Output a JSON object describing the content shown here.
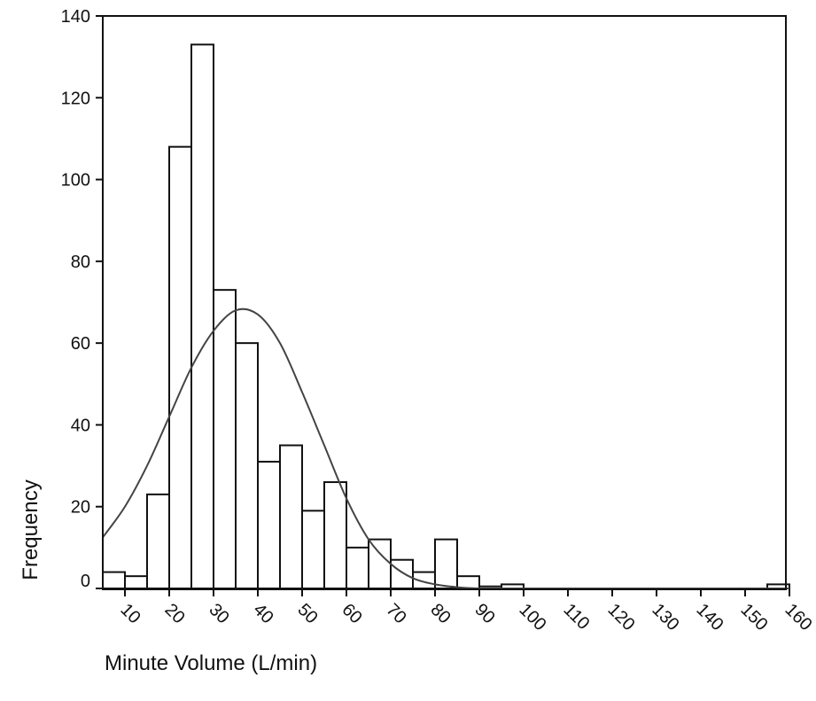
{
  "chart_data": {
    "type": "bar",
    "title": "",
    "xlabel": "Minute Volume (L/min)",
    "ylabel": "Frequency",
    "ylim": [
      0,
      140
    ],
    "yticks": [
      0,
      20,
      40,
      60,
      80,
      100,
      120,
      140
    ],
    "xlim": [
      5,
      161
    ],
    "xticks": [
      10,
      20,
      30,
      40,
      50,
      60,
      70,
      80,
      90,
      100,
      110,
      120,
      130,
      140,
      150,
      160
    ],
    "xtick_labels": [
      "10",
      "20",
      "30",
      "40",
      "50",
      "60",
      "70",
      "80",
      "90",
      "100",
      "110",
      "120",
      "130",
      "140",
      "150",
      "160"
    ],
    "bin_width": 5,
    "bins": [
      {
        "start": 5,
        "end": 10,
        "count": 4
      },
      {
        "start": 10,
        "end": 15,
        "count": 3
      },
      {
        "start": 15,
        "end": 20,
        "count": 23
      },
      {
        "start": 20,
        "end": 25,
        "count": 108
      },
      {
        "start": 25,
        "end": 30,
        "count": 133
      },
      {
        "start": 30,
        "end": 35,
        "count": 73
      },
      {
        "start": 35,
        "end": 40,
        "count": 60
      },
      {
        "start": 40,
        "end": 45,
        "count": 31
      },
      {
        "start": 45,
        "end": 50,
        "count": 35
      },
      {
        "start": 50,
        "end": 55,
        "count": 19
      },
      {
        "start": 55,
        "end": 60,
        "count": 26
      },
      {
        "start": 60,
        "end": 65,
        "count": 10
      },
      {
        "start": 65,
        "end": 70,
        "count": 12
      },
      {
        "start": 70,
        "end": 75,
        "count": 7
      },
      {
        "start": 75,
        "end": 80,
        "count": 4
      },
      {
        "start": 80,
        "end": 85,
        "count": 12
      },
      {
        "start": 85,
        "end": 90,
        "count": 3
      },
      {
        "start": 90,
        "end": 95,
        "count": 0.5
      },
      {
        "start": 95,
        "end": 100,
        "count": 1
      },
      {
        "start": 155,
        "end": 160,
        "count": 1
      }
    ],
    "fit_curve": {
      "type": "normal",
      "points": [
        [
          5,
          12.5
        ],
        [
          10,
          20
        ],
        [
          15,
          30
        ],
        [
          20,
          42
        ],
        [
          25,
          54
        ],
        [
          30,
          63
        ],
        [
          35,
          68
        ],
        [
          40,
          67
        ],
        [
          45,
          60
        ],
        [
          50,
          48
        ],
        [
          55,
          35
        ],
        [
          60,
          22
        ],
        [
          65,
          12
        ],
        [
          70,
          6
        ],
        [
          75,
          2.5
        ],
        [
          80,
          1
        ],
        [
          85,
          0.3
        ],
        [
          90,
          0
        ],
        [
          95,
          0
        ],
        [
          160,
          0
        ]
      ]
    },
    "grid": false,
    "legend": "none"
  }
}
